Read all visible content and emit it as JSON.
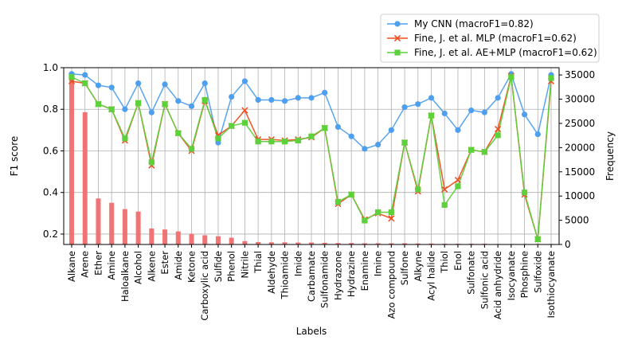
{
  "chart_data": {
    "type": "line",
    "xlabel": "Labels",
    "ylabel": "F1 score",
    "ylabel_right": "Frequency",
    "ylim": [
      0.15,
      1.0
    ],
    "ylim_right": [
      0,
      36500
    ],
    "yticks": [
      "0.2",
      "0.4",
      "0.6",
      "0.8",
      "1.0"
    ],
    "yticks_right": [
      "0",
      "5000",
      "10000",
      "15000",
      "20000",
      "25000",
      "30000",
      "35000"
    ],
    "grid": true,
    "legend_position": "top-right",
    "categories": [
      "Alkane",
      "Arene",
      "Ether",
      "Amine",
      "Haloalkane",
      "Alcohol",
      "Alkene",
      "Ester",
      "Amide",
      "Ketone",
      "Carboxylic acid",
      "Sulfide",
      "Phenol",
      "Nitrile",
      "Thial",
      "Aldehyde",
      "Thioamide",
      "Imide",
      "Carbamate",
      "Sulfonamide",
      "Hydrazone",
      "Hydrazine",
      "Enamine",
      "Imine",
      "Azo compound",
      "Sulfone",
      "Alkyne",
      "Acyl halide",
      "Thiol",
      "Enol",
      "Sulfonate",
      "Sulfonic acid",
      "Acid anhydride",
      "Isocyanate",
      "Phosphine",
      "Sulfoxide",
      "Isothiocyanate"
    ],
    "series": [
      {
        "name": "My CNN (macroF1=0.82)",
        "color": "#4f9fef",
        "marker": "circle",
        "values": [
          0.97,
          0.965,
          0.915,
          0.905,
          0.8,
          0.925,
          0.785,
          0.92,
          0.84,
          0.815,
          0.925,
          0.64,
          0.86,
          0.935,
          0.845,
          0.845,
          0.84,
          0.855,
          0.855,
          0.88,
          0.715,
          0.67,
          0.61,
          0.63,
          0.7,
          0.81,
          0.825,
          0.855,
          0.78,
          0.7,
          0.795,
          0.785,
          0.855,
          0.97,
          0.775,
          0.68,
          0.965
        ]
      },
      {
        "name": "Fine, J. et al. MLP (macroF1=0.62)",
        "color": "#ee4f22",
        "marker": "x",
        "values": [
          0.935,
          0.925,
          0.825,
          0.8,
          0.65,
          0.83,
          0.53,
          0.825,
          0.685,
          0.6,
          0.84,
          0.675,
          0.72,
          0.795,
          0.655,
          0.655,
          0.65,
          0.655,
          0.665,
          0.71,
          0.345,
          0.39,
          0.27,
          0.3,
          0.275,
          0.64,
          0.405,
          0.77,
          0.415,
          0.46,
          0.605,
          0.595,
          0.705,
          0.96,
          0.39,
          0.175,
          0.935
        ]
      },
      {
        "name": "Fine, J. et al. AE+MLP (macroF1=0.62)",
        "color": "#5dd13b",
        "marker": "square",
        "values": [
          0.955,
          0.925,
          0.825,
          0.8,
          0.66,
          0.83,
          0.545,
          0.825,
          0.685,
          0.61,
          0.845,
          0.66,
          0.72,
          0.735,
          0.645,
          0.645,
          0.645,
          0.65,
          0.67,
          0.71,
          0.355,
          0.39,
          0.265,
          0.305,
          0.305,
          0.64,
          0.415,
          0.77,
          0.34,
          0.43,
          0.605,
          0.595,
          0.675,
          0.955,
          0.4,
          0.175,
          0.95
        ]
      },
      {
        "name": "Frequency",
        "axis": "right",
        "chart": "bar",
        "color": "#f06e6e",
        "values": [
          35000,
          27300,
          9500,
          8600,
          7300,
          6800,
          3300,
          3100,
          2700,
          2200,
          1900,
          1700,
          1400,
          700,
          500,
          450,
          450,
          400,
          400,
          350,
          300,
          300,
          250,
          250,
          250,
          250,
          200,
          200,
          150,
          150,
          150,
          150,
          100,
          100,
          100,
          100,
          100
        ]
      }
    ]
  }
}
